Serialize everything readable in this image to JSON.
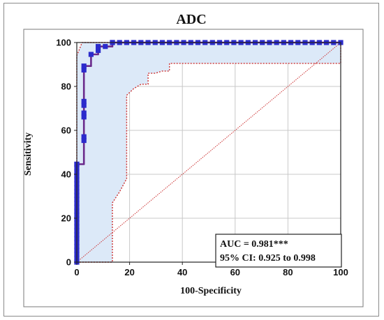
{
  "chart_data": {
    "type": "line",
    "title": "ADC",
    "xlabel": "100-Specificity",
    "ylabel": "Sensitivity",
    "xlim": [
      0,
      100
    ],
    "ylim": [
      0,
      100
    ],
    "xticks": [
      0,
      20,
      40,
      60,
      80,
      100
    ],
    "yticks": [
      0,
      20,
      40,
      60,
      80,
      100
    ],
    "grid": true,
    "annotations": {
      "auc": "AUC = 0.981***",
      "ci": "95% CI: 0.925 to 0.998"
    },
    "colors": {
      "roc": "#6b2b8c",
      "markers": "#2b2bcc",
      "ci_band": "#dce9f8",
      "ci_border": "#cc3333",
      "reference": "#cc3333",
      "grid": "#c8c8c8"
    },
    "series": [
      {
        "style": "roc",
        "x": [
          0,
          0,
          0,
          0,
          0,
          0,
          0,
          0,
          0,
          0,
          0,
          0,
          0,
          0,
          0,
          0,
          0,
          0,
          0,
          0,
          0,
          0,
          0,
          0,
          0,
          0,
          0,
          2.7,
          2.7,
          2.7,
          2.7,
          2.7,
          2.7,
          2.7,
          2.7,
          5.4,
          8.1,
          8.1,
          10.8,
          13.5,
          13.5,
          16.2,
          18.9,
          21.6,
          24.3,
          27,
          29.7,
          32.4,
          35.1,
          37.8,
          40.5,
          43.2,
          45.9,
          48.6,
          51.4,
          54.1,
          56.8,
          59.5,
          62.2,
          64.9,
          67.6,
          70.3,
          73,
          75.7,
          78.4,
          81.1,
          83.8,
          86.5,
          89.2,
          91.9,
          94.6,
          97.3,
          100
        ],
        "y": [
          0,
          1.8,
          3.6,
          5.4,
          7.1,
          8.9,
          10.7,
          12.5,
          14.3,
          16.1,
          17.9,
          19.6,
          21.4,
          23.2,
          25,
          26.8,
          28.6,
          30.4,
          32.1,
          33.9,
          35.7,
          37.5,
          39.3,
          41.1,
          42.9,
          44.6,
          44.6,
          55.4,
          57.1,
          66.1,
          67.9,
          71.4,
          73.2,
          87.5,
          89.3,
          94.6,
          96.4,
          98.2,
          98.2,
          100,
          100,
          100,
          100,
          100,
          100,
          100,
          100,
          100,
          100,
          100,
          100,
          100,
          100,
          100,
          100,
          100,
          100,
          100,
          100,
          100,
          100,
          100,
          100,
          100,
          100,
          100,
          100,
          100,
          100,
          100,
          100,
          100,
          100
        ]
      },
      {
        "style": "ci-upper",
        "x": [
          0,
          0,
          2,
          100
        ],
        "y": [
          0,
          94,
          100,
          100
        ]
      },
      {
        "style": "ci-lower",
        "x": [
          0,
          13.5,
          13.5,
          16.2,
          18.9,
          18.9,
          21.6,
          24.3,
          24.3,
          27,
          27,
          29.7,
          32.4,
          35.1,
          35.1,
          62,
          100,
          100
        ],
        "y": [
          0,
          0,
          27,
          32,
          38,
          76,
          79,
          81,
          81,
          81,
          86,
          86,
          87,
          87,
          90.5,
          90.5,
          90.5,
          100
        ]
      },
      {
        "style": "reference",
        "x": [
          0,
          100
        ],
        "y": [
          0,
          100
        ]
      }
    ]
  }
}
